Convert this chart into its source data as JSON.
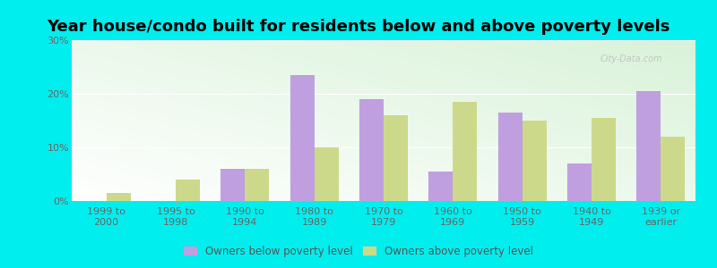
{
  "title": "Year house/condo built for residents below and above poverty levels",
  "categories": [
    "1999 to\n2000",
    "1995 to\n1998",
    "1990 to\n1994",
    "1980 to\n1989",
    "1970 to\n1979",
    "1960 to\n1969",
    "1950 to\n1959",
    "1940 to\n1949",
    "1939 or\nearlier"
  ],
  "below_poverty": [
    0.0,
    0.0,
    6.0,
    23.5,
    19.0,
    5.5,
    16.5,
    7.0,
    20.5
  ],
  "above_poverty": [
    1.5,
    4.0,
    6.0,
    10.0,
    16.0,
    18.5,
    15.0,
    15.5,
    12.0
  ],
  "below_color": "#bf9fdf",
  "above_color": "#ccd98a",
  "ylim": [
    0,
    30
  ],
  "yticks": [
    0,
    10,
    20,
    30
  ],
  "ytick_labels": [
    "0%",
    "10%",
    "20%",
    "30%"
  ],
  "outer_background": "#00eeee",
  "legend_below": "Owners below poverty level",
  "legend_above": "Owners above poverty level",
  "title_fontsize": 13,
  "tick_fontsize": 8
}
